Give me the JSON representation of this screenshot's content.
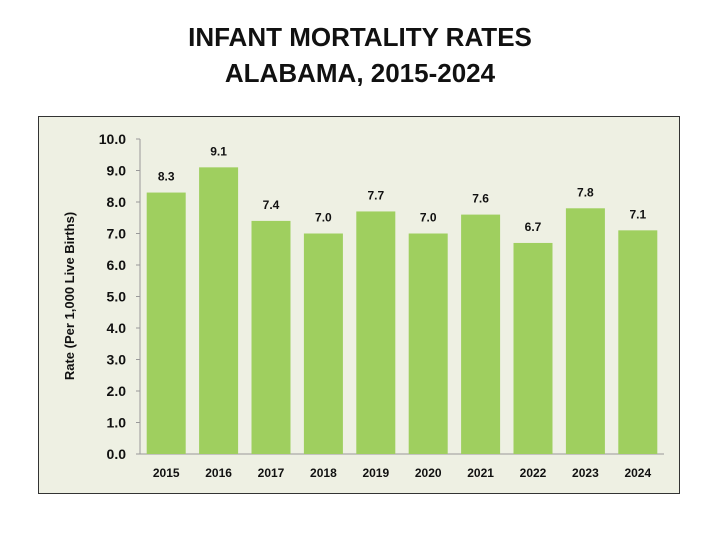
{
  "title_line1": "INFANT MORTALITY RATES",
  "title_line2": "ALABAMA, 2015-2024",
  "chart_data": {
    "type": "bar",
    "categories": [
      "2015",
      "2016",
      "2017",
      "2018",
      "2019",
      "2020",
      "2021",
      "2022",
      "2023",
      "2024"
    ],
    "values": [
      8.3,
      9.1,
      7.4,
      7.0,
      7.7,
      7.0,
      7.6,
      6.7,
      7.8,
      7.1
    ],
    "data_labels": [
      "8.3",
      "9.1",
      "7.4",
      "7.0",
      "7.7",
      "7.0",
      "7.6",
      "6.7",
      "7.8",
      "7.1"
    ],
    "xlabel": "",
    "ylabel": "Rate (Per 1,000 Live Births)",
    "ylim": [
      0,
      10
    ],
    "yticks": [
      "0.0",
      "1.0",
      "2.0",
      "3.0",
      "4.0",
      "5.0",
      "6.0",
      "7.0",
      "8.0",
      "9.0",
      "10.0"
    ],
    "grid": false,
    "legend": "none",
    "bar_color": "#9fcf5f",
    "background_color": "#eef0e3"
  }
}
